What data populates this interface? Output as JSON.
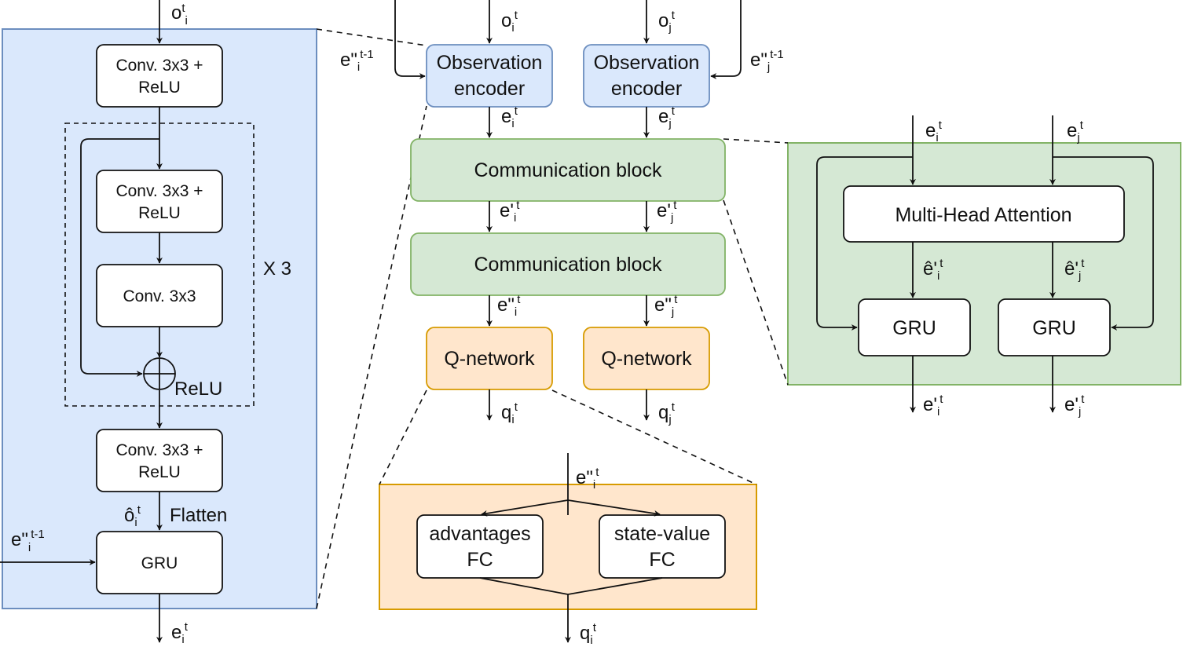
{
  "encoder_detail": {
    "input_label": {
      "base": "o",
      "sup": "t",
      "sub": "i"
    },
    "conv_top": [
      "Conv. 3x3 +",
      "ReLU"
    ],
    "res_conv1": [
      "Conv. 3x3 +",
      "ReLU"
    ],
    "res_conv2": "Conv. 3x3",
    "relu_label": "ReLU",
    "repeat_label": "X 3",
    "conv_bottom": [
      "Conv. 3x3 +",
      "ReLU"
    ],
    "flatten_label": "Flatten",
    "flat_var": {
      "base": "ô",
      "sub": "i",
      "sup": "t"
    },
    "gru": "GRU",
    "hidden_in": {
      "base": "e\"",
      "sub": "i",
      "sup": "t-1"
    },
    "output_label": {
      "base": "e",
      "sub": "i",
      "sup": "t"
    }
  },
  "main": {
    "obs_in_i": {
      "base": "o",
      "sub": "i",
      "sup": "t"
    },
    "obs_in_j": {
      "base": "o",
      "sub": "j",
      "sup": "t"
    },
    "hidden_i": {
      "base": "e\"",
      "sub": "i",
      "sup": "t-1"
    },
    "hidden_j": {
      "base": "e\"",
      "sub": "j",
      "sup": "t-1"
    },
    "encoder_i": [
      "Observation",
      "encoder"
    ],
    "encoder_j": [
      "Observation",
      "encoder"
    ],
    "enc_out_i": {
      "base": "e",
      "sub": "i",
      "sup": "t"
    },
    "enc_out_j": {
      "base": "e",
      "sub": "j",
      "sup": "t"
    },
    "comm_block_1": "Communication block",
    "comm1_out_i": {
      "base": "e'",
      "sub": "i",
      "sup": "t"
    },
    "comm1_out_j": {
      "base": "e'",
      "sub": "j",
      "sup": "t"
    },
    "comm_block_2": "Communication block",
    "comm2_out_i": {
      "base": "e\"",
      "sub": "i",
      "sup": "t"
    },
    "comm2_out_j": {
      "base": "e\"",
      "sub": "j",
      "sup": "t"
    },
    "qnet_i": "Q-network",
    "qnet_j": "Q-network",
    "q_out_i": {
      "base": "q",
      "sub": "i",
      "sup": "t"
    },
    "q_out_j": {
      "base": "q",
      "sub": "j",
      "sup": "t"
    }
  },
  "comm_detail": {
    "in_i": {
      "base": "e",
      "sub": "i",
      "sup": "t"
    },
    "in_j": {
      "base": "e",
      "sub": "j",
      "sup": "t"
    },
    "mha": "Multi-Head Attention",
    "att_i": {
      "base": "ê'",
      "sub": "i",
      "sup": "t"
    },
    "att_j": {
      "base": "ê'",
      "sub": "j",
      "sup": "t"
    },
    "gru_i": "GRU",
    "gru_j": "GRU",
    "out_i": {
      "base": "e'",
      "sub": "i",
      "sup": "t"
    },
    "out_j": {
      "base": "e'",
      "sub": "j",
      "sup": "t"
    }
  },
  "qnet_detail": {
    "input_label": {
      "base": "e\"",
      "sub": "i",
      "sup": "t"
    },
    "advantages": [
      "advantages",
      "FC"
    ],
    "state_value": [
      "state-value",
      "FC"
    ],
    "output_label": {
      "base": "q",
      "sub": "i",
      "sup": "t"
    }
  },
  "colors": {
    "blue_fill": "#dae8fc",
    "blue_stroke": "#6c8ebf",
    "green_fill": "#d5e8d4",
    "green_stroke": "#82b366",
    "orange_fill": "#ffe6cc",
    "orange_stroke": "#d79b00"
  }
}
